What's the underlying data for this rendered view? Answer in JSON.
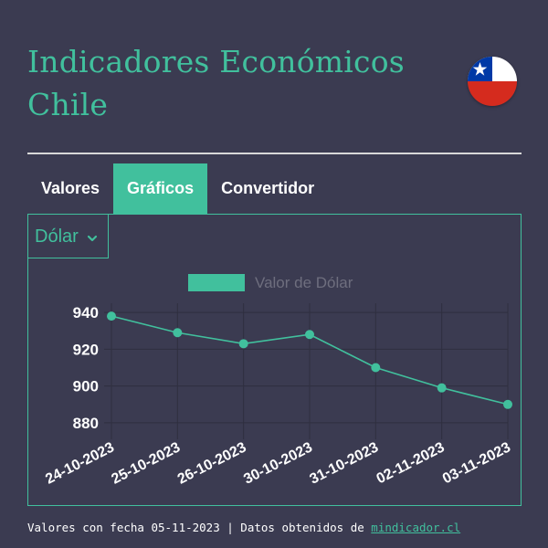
{
  "app": {
    "title": "Indicadores Económicos Chile",
    "accent_color": "#41c09d",
    "background_color": "#3b3b51",
    "flag_icon": "chile-flag-icon"
  },
  "tabs": [
    {
      "label": "Valores",
      "active": false
    },
    {
      "label": "Gráficos",
      "active": true
    },
    {
      "label": "Convertidor",
      "active": false
    }
  ],
  "indicator_select": {
    "selected": "Dólar",
    "icon": "chevron-down-icon"
  },
  "chart_data": {
    "type": "line",
    "title": "",
    "xlabel": "",
    "ylabel": "",
    "categories": [
      "24-10-2023",
      "25-10-2023",
      "26-10-2023",
      "30-10-2023",
      "31-10-2023",
      "02-11-2023",
      "03-11-2023"
    ],
    "series": [
      {
        "name": "Valor de Dólar",
        "values": [
          938,
          929,
          923,
          928,
          910,
          899,
          890
        ],
        "color": "#41c09d"
      }
    ],
    "yticks": [
      880,
      900,
      920,
      940
    ],
    "ylim": [
      875,
      945
    ],
    "grid": true,
    "legend_position": "top-center"
  },
  "footer": {
    "text": "Valores con fecha 05-11-2023 | Datos obtenidos de ",
    "link_text": "mindicador.cl"
  }
}
